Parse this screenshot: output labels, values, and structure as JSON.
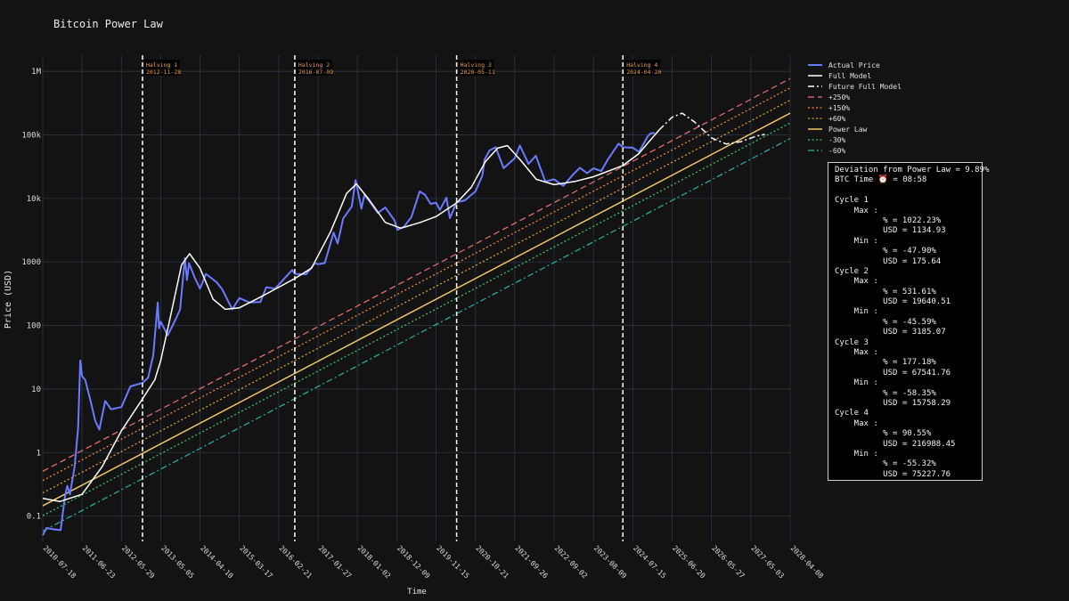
{
  "title": "Bitcoin Power Law",
  "chart_data": {
    "type": "line",
    "title": "Bitcoin Power Law",
    "xlabel": "Time",
    "ylabel": "Price (USD)",
    "yscale": "log",
    "xlim": [
      "2010-07-18",
      "2028-04-08"
    ],
    "ylim": [
      0.04,
      1800000
    ],
    "grid": true,
    "legend_placement": "right",
    "x_tick_labels": [
      "2010-07-18",
      "2011-06-23",
      "2012-05-29",
      "2013-05-05",
      "2014-04-10",
      "2015-03-17",
      "2016-02-21",
      "2017-01-27",
      "2018-01-02",
      "2018-12-09",
      "2019-11-15",
      "2020-10-21",
      "2021-09-26",
      "2022-09-02",
      "2023-08-09",
      "2024-07-15",
      "2025-06-20",
      "2026-05-27",
      "2027-05-03",
      "2028-04-08"
    ],
    "y_ticks": [
      {
        "value": 0.1,
        "label": "0.1"
      },
      {
        "value": 1,
        "label": "1"
      },
      {
        "value": 10,
        "label": "10"
      },
      {
        "value": 100,
        "label": "100"
      },
      {
        "value": 1000,
        "label": "1000"
      },
      {
        "value": 10000,
        "label": "10k"
      },
      {
        "value": 100000,
        "label": "100k"
      },
      {
        "value": 1000000,
        "label": "1M"
      }
    ],
    "halvings": [
      {
        "label": "Halving 1",
        "date": "2012-11-28"
      },
      {
        "label": "Halving 2",
        "date": "2016-07-09"
      },
      {
        "label": "Halving 3",
        "date": "2020-05-11"
      },
      {
        "label": "Halving 4",
        "date": "2024-04-20"
      }
    ],
    "power_law": {
      "start": [
        "2010-07-18",
        0.145
      ],
      "end": [
        "2028-04-08",
        220000
      ]
    },
    "bands": [
      {
        "name": "+250%",
        "multiplier": 3.5,
        "color": "#f07178"
      },
      {
        "name": "+150%",
        "multiplier": 2.5,
        "color": "#ff8c42"
      },
      {
        "name": "+60%",
        "multiplier": 1.6,
        "color": "#f2a33a"
      },
      {
        "name": "Power Law",
        "multiplier": 1.0,
        "color": "#f3c96b"
      },
      {
        "name": "-30%",
        "multiplier": 0.7,
        "color": "#3fcf6b"
      },
      {
        "name": "-60%",
        "multiplier": 0.4,
        "color": "#2ab3a6"
      }
    ],
    "series": [
      {
        "name": "Actual Price",
        "color": "#6a7bff",
        "points": [
          [
            "2010-07-18",
            0.05
          ],
          [
            "2010-08-20",
            0.065
          ],
          [
            "2010-10-15",
            0.062
          ],
          [
            "2010-12-20",
            0.06
          ],
          [
            "2011-01-25",
            0.2
          ],
          [
            "2011-02-15",
            0.3
          ],
          [
            "2011-03-10",
            0.22
          ],
          [
            "2011-04-20",
            0.6
          ],
          [
            "2011-05-20",
            2.5
          ],
          [
            "2011-06-08",
            28
          ],
          [
            "2011-06-23",
            16
          ],
          [
            "2011-07-20",
            14
          ],
          [
            "2011-09-01",
            7
          ],
          [
            "2011-10-15",
            3.2
          ],
          [
            "2011-11-20",
            2.3
          ],
          [
            "2012-01-10",
            6.5
          ],
          [
            "2012-03-01",
            4.8
          ],
          [
            "2012-05-29",
            5.2
          ],
          [
            "2012-08-15",
            11
          ],
          [
            "2012-11-28",
            12.5
          ],
          [
            "2013-01-15",
            15
          ],
          [
            "2013-03-01",
            34
          ],
          [
            "2013-04-09",
            230
          ],
          [
            "2013-04-20",
            90
          ],
          [
            "2013-05-05",
            115
          ],
          [
            "2013-07-05",
            70
          ],
          [
            "2013-09-15",
            130
          ],
          [
            "2013-10-20",
            180
          ],
          [
            "2013-11-30",
            1150
          ],
          [
            "2013-12-18",
            520
          ],
          [
            "2014-01-05",
            950
          ],
          [
            "2014-02-25",
            560
          ],
          [
            "2014-04-10",
            380
          ],
          [
            "2014-06-01",
            650
          ],
          [
            "2014-09-01",
            480
          ],
          [
            "2014-10-20",
            370
          ],
          [
            "2015-01-14",
            180
          ],
          [
            "2015-03-17",
            270
          ],
          [
            "2015-06-15",
            230
          ],
          [
            "2015-09-15",
            235
          ],
          [
            "2015-11-05",
            400
          ],
          [
            "2016-01-20",
            380
          ],
          [
            "2016-02-21",
            440
          ],
          [
            "2016-06-17",
            750
          ],
          [
            "2016-07-09",
            650
          ],
          [
            "2016-10-15",
            640
          ],
          [
            "2016-12-31",
            960
          ],
          [
            "2017-01-27",
            920
          ],
          [
            "2017-03-25",
            960
          ],
          [
            "2017-06-10",
            2900
          ],
          [
            "2017-07-15",
            1950
          ],
          [
            "2017-09-01",
            4800
          ],
          [
            "2017-11-15",
            7500
          ],
          [
            "2017-12-17",
            19500
          ],
          [
            "2018-01-02",
            14500
          ],
          [
            "2018-02-06",
            6900
          ],
          [
            "2018-03-05",
            11500
          ],
          [
            "2018-06-28",
            5900
          ],
          [
            "2018-09-01",
            7200
          ],
          [
            "2018-11-20",
            4500
          ],
          [
            "2018-12-15",
            3200
          ],
          [
            "2019-02-10",
            3600
          ],
          [
            "2019-04-15",
            5100
          ],
          [
            "2019-06-26",
            12900
          ],
          [
            "2019-08-10",
            11500
          ],
          [
            "2019-09-28",
            8200
          ],
          [
            "2019-11-15",
            8600
          ],
          [
            "2019-12-18",
            6600
          ],
          [
            "2020-02-12",
            10300
          ],
          [
            "2020-03-13",
            4900
          ],
          [
            "2020-05-11",
            8700
          ],
          [
            "2020-07-20",
            9300
          ],
          [
            "2020-10-21",
            12900
          ],
          [
            "2020-12-20",
            23000
          ],
          [
            "2021-01-08",
            41000
          ],
          [
            "2021-02-20",
            57000
          ],
          [
            "2021-04-14",
            64000
          ],
          [
            "2021-06-22",
            30000
          ],
          [
            "2021-09-26",
            43000
          ],
          [
            "2021-11-10",
            68000
          ],
          [
            "2022-01-24",
            35000
          ],
          [
            "2022-03-28",
            47000
          ],
          [
            "2022-06-18",
            18500
          ],
          [
            "2022-09-02",
            20000
          ],
          [
            "2022-11-21",
            15800
          ],
          [
            "2023-02-15",
            24000
          ],
          [
            "2023-04-14",
            30400
          ],
          [
            "2023-06-15",
            25000
          ],
          [
            "2023-08-09",
            29800
          ],
          [
            "2023-10-15",
            27000
          ],
          [
            "2023-12-15",
            42000
          ],
          [
            "2024-03-14",
            73000
          ],
          [
            "2024-04-20",
            64000
          ],
          [
            "2024-07-15",
            63000
          ],
          [
            "2024-09-06",
            54000
          ],
          [
            "2024-11-20",
            94000
          ],
          [
            "2024-12-17",
            106000
          ],
          [
            "2025-01-20",
            108000
          ]
        ]
      },
      {
        "name": "Full Model",
        "color": "#ffffff",
        "points": [
          [
            "2010-07-18",
            0.19
          ],
          [
            "2010-12-15",
            0.17
          ],
          [
            "2011-06-23",
            0.22
          ],
          [
            "2011-12-15",
            0.6
          ],
          [
            "2012-05-29",
            2.2
          ],
          [
            "2012-11-28",
            7
          ],
          [
            "2013-03-15",
            14
          ],
          [
            "2013-05-05",
            28
          ],
          [
            "2013-08-01",
            150
          ],
          [
            "2013-11-01",
            900
          ],
          [
            "2014-01-10",
            1350
          ],
          [
            "2014-04-10",
            800
          ],
          [
            "2014-08-01",
            260
          ],
          [
            "2014-11-15",
            180
          ],
          [
            "2015-03-17",
            190
          ],
          [
            "2015-09-15",
            280
          ],
          [
            "2016-02-21",
            400
          ],
          [
            "2016-07-09",
            550
          ],
          [
            "2016-12-01",
            800
          ],
          [
            "2017-05-15",
            3000
          ],
          [
            "2017-10-01",
            12000
          ],
          [
            "2017-12-25",
            17000
          ],
          [
            "2018-04-15",
            9500
          ],
          [
            "2018-09-01",
            4200
          ],
          [
            "2019-01-15",
            3400
          ],
          [
            "2019-07-01",
            4200
          ],
          [
            "2019-11-15",
            5200
          ],
          [
            "2020-05-11",
            8500
          ],
          [
            "2020-09-15",
            15000
          ],
          [
            "2021-01-15",
            38000
          ],
          [
            "2021-05-01",
            62000
          ],
          [
            "2021-07-25",
            68000
          ],
          [
            "2021-11-15",
            40000
          ],
          [
            "2022-04-01",
            20000
          ],
          [
            "2022-09-02",
            16500
          ],
          [
            "2023-03-01",
            18500
          ],
          [
            "2023-08-09",
            22000
          ],
          [
            "2024-04-20",
            33000
          ],
          [
            "2024-09-01",
            50000
          ],
          [
            "2024-12-31",
            90000
          ],
          [
            "2025-03-01",
            120000
          ]
        ]
      },
      {
        "name": "Future Full Model",
        "color": "#ffffff",
        "points": [
          [
            "2025-03-01",
            120000
          ],
          [
            "2025-06-20",
            190000
          ],
          [
            "2025-09-15",
            220000
          ],
          [
            "2026-01-01",
            160000
          ],
          [
            "2026-05-27",
            90000
          ],
          [
            "2026-10-01",
            72000
          ],
          [
            "2027-02-01",
            78000
          ],
          [
            "2027-06-15",
            95000
          ],
          [
            "2027-09-01",
            102000
          ]
        ]
      }
    ]
  },
  "legend": [
    {
      "label": "Actual Price",
      "color": "#6a7bff",
      "style": "solid",
      "width": 2
    },
    {
      "label": "Full Model",
      "color": "#ffffff",
      "style": "solid",
      "width": 1.5
    },
    {
      "label": "Future Full Model",
      "color": "#ffffff",
      "style": "dashdot",
      "width": 1.5
    },
    {
      "label": "+250%",
      "color": "#f07178",
      "style": "dashed",
      "width": 1.2
    },
    {
      "label": "+150%",
      "color": "#ff8c42",
      "style": "dotted",
      "width": 1.2
    },
    {
      "label": "+60%",
      "color": "#f2a33a",
      "style": "dotted",
      "width": 1.2
    },
    {
      "label": "Power Law",
      "color": "#f3c96b",
      "style": "solid",
      "width": 1.5
    },
    {
      "label": "-30%",
      "color": "#3fcf6b",
      "style": "dotted",
      "width": 1.2
    },
    {
      "label": "-60%",
      "color": "#2ab3a6",
      "style": "dashdot",
      "width": 1.2
    }
  ],
  "stats_lines": [
    "Deviation from Power Law = 9.89%",
    "BTC Time ⏰ = 08:58",
    "",
    "Cycle 1",
    "    Max :",
    "          % = 1022.23%",
    "          USD = 1134.93",
    "    Min :",
    "          % = -47.90%",
    "          USD = 175.64",
    "Cycle 2",
    "    Max :",
    "          % = 531.61%",
    "          USD = 19640.51",
    "    Min :",
    "          % = -45.59%",
    "          USD = 3185.07",
    "Cycle 3",
    "    Max :",
    "          % = 177.18%",
    "          USD = 67541.76",
    "    Min :",
    "          % = -58.35%",
    "          USD = 15758.29",
    "Cycle 4",
    "    Max :",
    "          % = 90.55%",
    "          USD = 216988.45",
    "    Min :",
    "          % = -55.32%",
    "          USD = 75227.76"
  ]
}
